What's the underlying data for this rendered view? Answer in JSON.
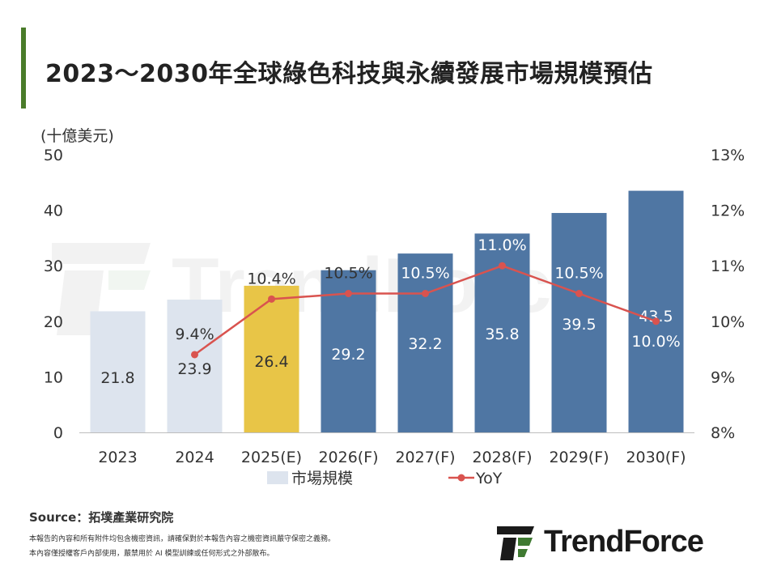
{
  "title": "2023～2030年全球綠色科技與永續發展市場規模預估",
  "source": "Source：拓墣產業研究院",
  "disclaimer": [
    "本報告的內容和所有附件均包含機密資訊，請確保對於本報告內容之機密資訊嚴守保密之義務。",
    "本內容僅授權客戶內部使用，嚴禁用於 AI 模型訓練或任何形式之外部散布。"
  ],
  "logo_text": "TrendForce",
  "watermark_text": "TrendForce",
  "colors": {
    "title_accent": "#4a7c2a",
    "bar_actual": "#dde4ee",
    "bar_estimate": "#e8c547",
    "bar_forecast": "#4f76a3",
    "line": "#d9534f",
    "logo_green": "#3f7a32"
  },
  "chart_data": {
    "type": "bar",
    "categories": [
      "2023",
      "2024",
      "2025(E)",
      "2026(F)",
      "2027(F)",
      "2028(F)",
      "2029(F)",
      "2030(F)"
    ],
    "bar_kinds": [
      "actual",
      "actual",
      "estimate",
      "forecast",
      "forecast",
      "forecast",
      "forecast",
      "forecast"
    ],
    "series": [
      {
        "name": "市場規模",
        "type": "bar",
        "axis": "left",
        "values": [
          21.8,
          23.9,
          26.4,
          29.2,
          32.2,
          35.8,
          39.5,
          43.5
        ]
      },
      {
        "name": "YoY",
        "type": "line",
        "axis": "right",
        "values": [
          null,
          9.4,
          10.4,
          10.5,
          10.5,
          11.0,
          10.5,
          10.0
        ],
        "labels": [
          null,
          "9.4%",
          "10.4%",
          "10.5%",
          "10.5%",
          "11.0%",
          "10.5%",
          "10.0%"
        ]
      }
    ],
    "ylabel": "(十億美元)",
    "ylim": [
      0,
      50
    ],
    "yticks": [
      "0",
      "10",
      "20",
      "30",
      "40",
      "50"
    ],
    "y2lim": [
      8,
      13
    ],
    "y2ticks": [
      "8%",
      "9%",
      "10%",
      "11%",
      "12%",
      "13%"
    ],
    "legend": [
      "市場規模",
      "YoY"
    ],
    "legend_position": "bottom",
    "grid": false
  }
}
